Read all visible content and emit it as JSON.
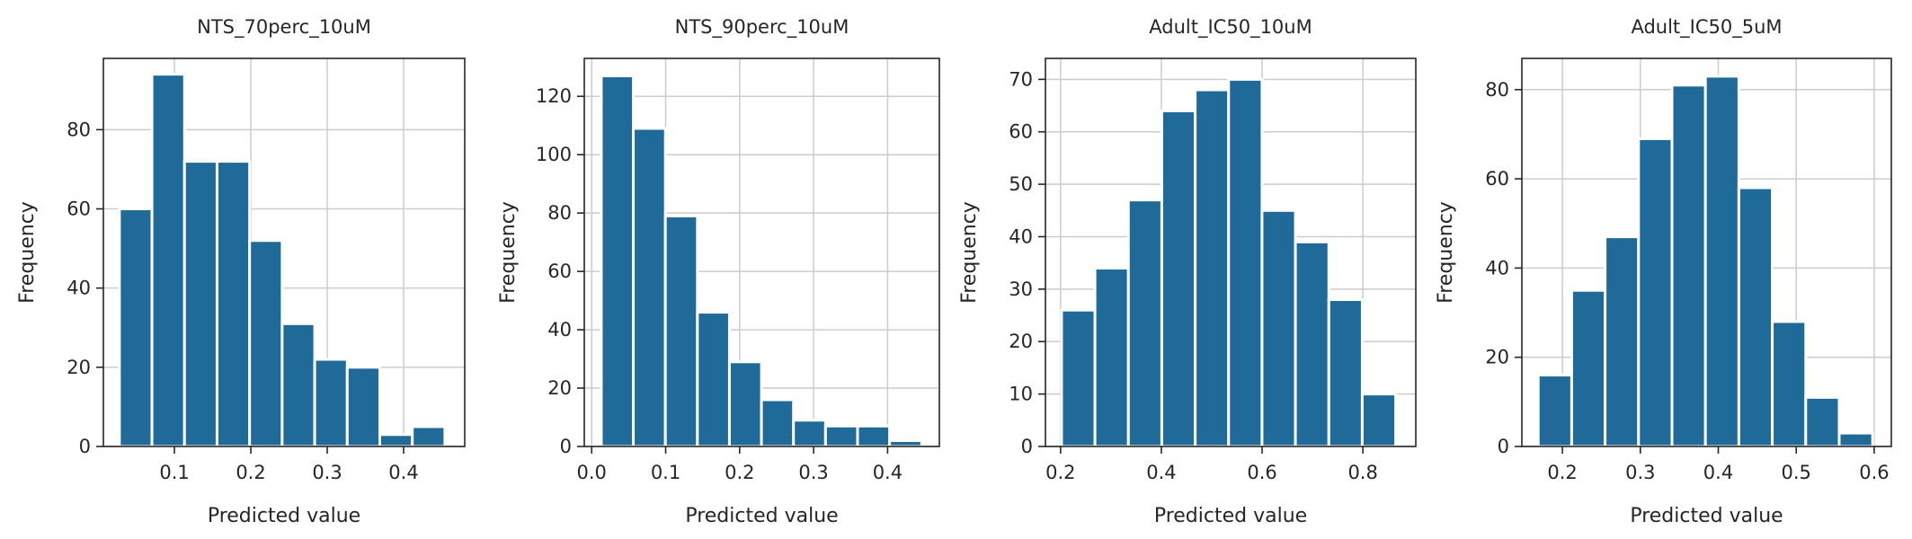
{
  "chart_data": [
    {
      "type": "bar",
      "title": "NTS_70perc_10uM",
      "xlabel": "Predicted value",
      "ylabel": "Frequency",
      "color": "#1f6a99",
      "xlim": [
        0.007,
        0.48
      ],
      "ylim": [
        0,
        98
      ],
      "xticks": [
        0.1,
        0.2,
        0.3,
        0.4
      ],
      "xticklabels": [
        "0.1",
        "0.2",
        "0.3",
        "0.4"
      ],
      "yticks": [
        0,
        20,
        40,
        60,
        80
      ],
      "yticklabels": [
        "0",
        "20",
        "40",
        "60",
        "80"
      ],
      "bin_edges": [
        0.028,
        0.0706,
        0.1132,
        0.1558,
        0.1984,
        0.241,
        0.2836,
        0.3262,
        0.3688,
        0.4114,
        0.454
      ],
      "values": [
        60,
        94,
        72,
        72,
        52,
        31,
        22,
        20,
        3,
        5
      ],
      "grid": true
    },
    {
      "type": "bar",
      "title": "NTS_90perc_10uM",
      "xlabel": "Predicted value",
      "ylabel": "Frequency",
      "color": "#1f6a99",
      "xlim": [
        -0.01,
        0.47
      ],
      "ylim": [
        0,
        133
      ],
      "xticks": [
        0.0,
        0.1,
        0.2,
        0.3,
        0.4
      ],
      "xticklabels": [
        "0.0",
        "0.1",
        "0.2",
        "0.3",
        "0.4"
      ],
      "yticks": [
        0,
        20,
        40,
        60,
        80,
        100,
        120
      ],
      "yticklabels": [
        "0",
        "20",
        "40",
        "60",
        "80",
        "100",
        "120"
      ],
      "bin_edges": [
        0.013,
        0.0563,
        0.0996,
        0.1429,
        0.1862,
        0.2295,
        0.2728,
        0.3161,
        0.3594,
        0.4027,
        0.446
      ],
      "values": [
        127,
        109,
        79,
        46,
        29,
        16,
        9,
        7,
        7,
        2
      ],
      "grid": true
    },
    {
      "type": "bar",
      "title": "Adult_IC50_10uM",
      "xlabel": "Predicted value",
      "ylabel": "Frequency",
      "color": "#1f6a99",
      "xlim": [
        0.17,
        0.905
      ],
      "ylim": [
        0,
        74
      ],
      "xticks": [
        0.2,
        0.4,
        0.6,
        0.8
      ],
      "xticklabels": [
        "0.2",
        "0.4",
        "0.6",
        "0.8"
      ],
      "yticks": [
        0,
        10,
        20,
        30,
        40,
        50,
        60,
        70
      ],
      "yticklabels": [
        "0",
        "10",
        "20",
        "30",
        "40",
        "50",
        "60",
        "70"
      ],
      "bin_edges": [
        0.202,
        0.2683,
        0.3346,
        0.4009,
        0.4672,
        0.5335,
        0.5998,
        0.6661,
        0.7324,
        0.7987,
        0.865
      ],
      "values": [
        26,
        34,
        47,
        64,
        68,
        70,
        45,
        39,
        28,
        10
      ],
      "grid": true
    },
    {
      "type": "bar",
      "title": "Adult_IC50_5uM",
      "xlabel": "Predicted value",
      "ylabel": "Frequency",
      "color": "#1f6a99",
      "xlim": [
        0.148,
        0.622
      ],
      "ylim": [
        0,
        87
      ],
      "xticks": [
        0.2,
        0.3,
        0.4,
        0.5,
        0.6
      ],
      "xticklabels": [
        "0.2",
        "0.3",
        "0.4",
        "0.5",
        "0.6"
      ],
      "yticks": [
        0,
        20,
        40,
        60,
        80
      ],
      "yticklabels": [
        "0",
        "20",
        "40",
        "60",
        "80"
      ],
      "bin_edges": [
        0.169,
        0.2119,
        0.2548,
        0.2977,
        0.3406,
        0.3835,
        0.4264,
        0.4693,
        0.5122,
        0.5551,
        0.598
      ],
      "values": [
        16,
        35,
        47,
        69,
        81,
        83,
        58,
        28,
        11,
        3
      ],
      "grid": true
    }
  ]
}
